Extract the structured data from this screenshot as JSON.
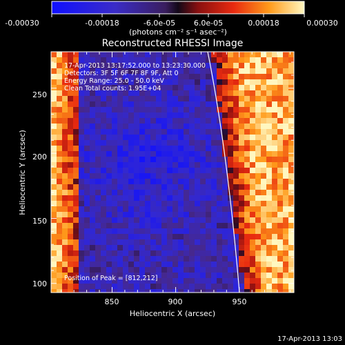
{
  "colorbar": {
    "ticks": [
      "-0.00030",
      "-0.00018",
      "-6.0e-05",
      "6.0e-05",
      "0.00018",
      "0.00030"
    ],
    "unit_label": "(photons cm⁻² s⁻¹ asec⁻²)"
  },
  "plot": {
    "title": "Reconstructed RHESSI Image",
    "xlabel": "Heliocentric X (arcsec)",
    "ylabel": "Heliocentric Y (arcsec)",
    "x_ticks": [
      "850",
      "900",
      "950"
    ],
    "y_ticks": [
      "100",
      "150",
      "200",
      "250"
    ],
    "x_range": [
      802,
      993
    ],
    "y_range": [
      93,
      278
    ]
  },
  "annotation": {
    "time_range": "17-Apr-2013 13:17:52.000 to 13:23:30.000",
    "detectors": "Detectors: 3F 5F 6F 7F 8F 9F, Att 0",
    "energy": "Energy Range: 25.0 - 50.0 keV",
    "clean": "Clean     Total counts: 1.95E+04",
    "peak": "Position of Peak = [812,212]"
  },
  "footer": {
    "timestamp": "17-Apr-2013 13:03"
  }
}
